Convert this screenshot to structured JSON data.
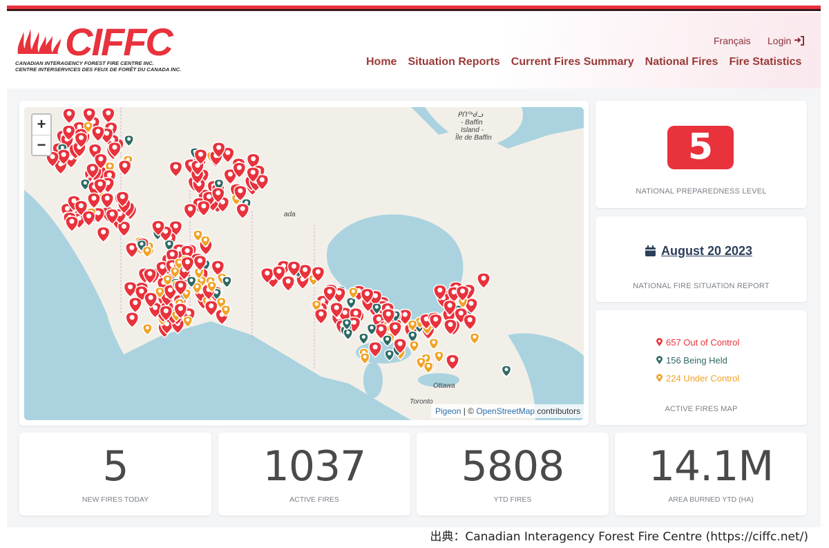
{
  "header": {
    "logo_text": "CIFFC",
    "logo_sub_en": "CANADIAN INTERAGENCY FOREST FIRE CENTRE INC.",
    "logo_sub_fr": "CENTRE INTERSERVICES DES FEUX DE FORÊT DU CANADA INC.",
    "lang_label": "Français",
    "login_label": "Login",
    "nav": [
      "Home",
      "Situation Reports",
      "Current Fires Summary",
      "National Fires",
      "Fire Statistics"
    ]
  },
  "map": {
    "zoom_in": "+",
    "zoom_out": "−",
    "labels": [
      "ᑭᑎᖅᑯᓗ",
      "- Baffin",
      "Island -",
      "Île de Baffin",
      "ada",
      "Ottawa",
      "Toronto"
    ],
    "attribution_pigeon": "Pigeon",
    "attribution_sep": " | © ",
    "attribution_osm": "OpenStreetMap",
    "attribution_tail": " contributors"
  },
  "preparedness": {
    "level": "5",
    "label": "NATIONAL PREPAREDNESS LEVEL"
  },
  "report": {
    "date": "August 20 2023",
    "label": "NATIONAL FIRE SITUATION REPORT"
  },
  "legend": {
    "out_of_control": "657 Out of Control",
    "being_held": "156 Being Held",
    "under_control": "224 Under Control",
    "label": "ACTIVE FIRES MAP"
  },
  "stats": [
    {
      "value": "5",
      "label": "NEW FIRES TODAY"
    },
    {
      "value": "1037",
      "label": "ACTIVE FIRES"
    },
    {
      "value": "5808",
      "label": "YTD FIRES"
    },
    {
      "value": "14.1M",
      "label": "AREA BURNED YTD (HA)"
    }
  ],
  "colors": {
    "accent": "#e8323c",
    "nav_text": "#9a3a38",
    "out_of_control": "#e8323c",
    "being_held": "#2e6a64",
    "under_control": "#f0a326"
  },
  "source_note": "出典：Canadian Interagency Forest Fire Centre (https://ciffc.net/)"
}
